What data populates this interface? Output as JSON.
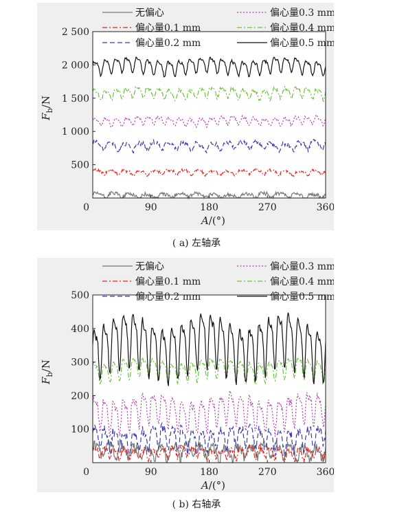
{
  "chart_data": [
    {
      "type": "line",
      "caption": "( a) 左轴承",
      "xlabel": "A/(°)",
      "ylabel": "Fb/N",
      "xlim": [
        0,
        360
      ],
      "ylim": [
        0,
        2500
      ],
      "xticks": [
        0,
        90,
        180,
        270,
        360
      ],
      "yticks": [
        500,
        1000,
        1500,
        2000,
        2500
      ],
      "ytick_labels": [
        "500",
        "1 000",
        "1 500",
        "2 000",
        "2 500"
      ],
      "grid": false,
      "legend_position": "top",
      "series": [
        {
          "name": "无偏心",
          "style": "solid",
          "color": "#777777",
          "mean": 40,
          "amp": 40,
          "cycles": 14,
          "noise": 0.7
        },
        {
          "name": "偏心量0.1 mm",
          "style": "dashdot",
          "color": "#e8231d",
          "mean": 390,
          "amp": 40,
          "cycles": 16,
          "noise": 0.5
        },
        {
          "name": "偏心量0.2 mm",
          "style": "dashed",
          "color": "#3b3bb0",
          "mean": 790,
          "amp": 70,
          "cycles": 16,
          "noise": 0.5
        },
        {
          "name": "偏心量0.3 mm",
          "style": "dotted",
          "color": "#b23ab2",
          "mean": 1160,
          "amp": 70,
          "cycles": 22,
          "noise": 0.3
        },
        {
          "name": "偏心量0.4 mm",
          "style": "dashdot",
          "color": "#6ac23c",
          "mean": 1580,
          "amp": 90,
          "cycles": 22,
          "noise": 0.3
        },
        {
          "name": "偏心量0.5 mm",
          "style": "solid",
          "color": "#111111",
          "mean": 1990,
          "amp": 130,
          "cycles": 22,
          "noise": 0.15
        }
      ]
    },
    {
      "type": "line",
      "caption": "( b) 右轴承",
      "xlabel": "A/(°)",
      "ylabel": "Fb/N",
      "xlim": [
        0,
        360
      ],
      "ylim": [
        0,
        500
      ],
      "xticks": [
        0,
        90,
        180,
        270,
        360
      ],
      "yticks": [
        100,
        200,
        300,
        400,
        500
      ],
      "ytick_labels": [
        "100",
        "200",
        "300",
        "400",
        "500"
      ],
      "grid": false,
      "legend_position": "top",
      "series": [
        {
          "name": "无偏心",
          "style": "solid",
          "color": "#777777",
          "mean": 35,
          "amp": 25,
          "cycles": 18,
          "noise": 0.6
        },
        {
          "name": "偏心量0.1 mm",
          "style": "dashdot",
          "color": "#e8231d",
          "mean": 30,
          "amp": 18,
          "cycles": 24,
          "noise": 0.5
        },
        {
          "name": "偏心量0.2 mm",
          "style": "dashed",
          "color": "#3b3bb0",
          "mean": 75,
          "amp": 35,
          "cycles": 24,
          "noise": 0.4
        },
        {
          "name": "偏心量0.3 mm",
          "style": "dotted",
          "color": "#b23ab2",
          "mean": 155,
          "amp": 55,
          "cycles": 24,
          "noise": 0.2
        },
        {
          "name": "偏心量0.4 mm",
          "style": "dashdot",
          "color": "#6ac23c",
          "mean": 280,
          "amp": 35,
          "cycles": 24,
          "noise": 0.15
        },
        {
          "name": "偏心量0.5 mm",
          "style": "solid",
          "color": "#111111",
          "mean": 355,
          "amp": 95,
          "cycles": 24,
          "noise": 0.1
        }
      ]
    }
  ]
}
